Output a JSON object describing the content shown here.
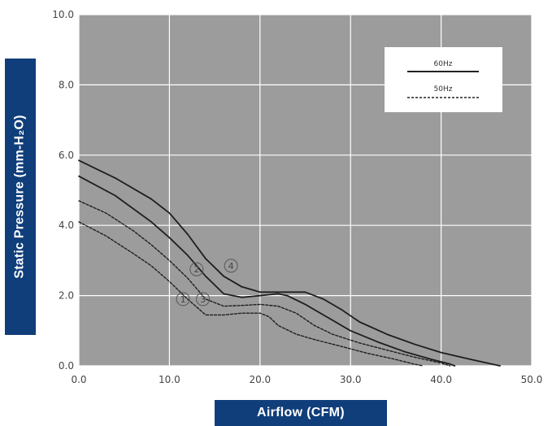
{
  "chart_data": {
    "type": "line",
    "xlabel": "Airflow (CFM)",
    "ylabel": "Static Pressure (mm-H₂O)",
    "xlim": [
      0,
      50
    ],
    "ylim": [
      0,
      10
    ],
    "x_ticks": [
      "0.0",
      "10.0",
      "20.0",
      "30.0",
      "40.0",
      "50.0"
    ],
    "y_ticks": [
      "0.0",
      "2.0",
      "4.0",
      "6.0",
      "8.0",
      "10.0"
    ],
    "grid": true,
    "legend": {
      "position": "top-right",
      "entries": [
        {
          "label": "60Hz",
          "style": "solid"
        },
        {
          "label": "50Hz",
          "style": "dashed"
        }
      ]
    },
    "curve_markers": [
      {
        "label": "1",
        "x": 11.5,
        "y": 1.9
      },
      {
        "label": "2",
        "x": 13.0,
        "y": 2.75
      },
      {
        "label": "3",
        "x": 13.7,
        "y": 1.9
      },
      {
        "label": "4",
        "x": 16.8,
        "y": 2.85
      }
    ],
    "series": [
      {
        "marker": "4",
        "style": "solid",
        "points": [
          [
            0,
            5.85
          ],
          [
            4,
            5.35
          ],
          [
            8,
            4.75
          ],
          [
            10,
            4.35
          ],
          [
            12,
            3.75
          ],
          [
            14,
            3.05
          ],
          [
            16,
            2.55
          ],
          [
            18,
            2.25
          ],
          [
            20,
            2.1
          ],
          [
            22,
            2.1
          ],
          [
            24,
            2.1
          ],
          [
            25,
            2.1
          ],
          [
            27,
            1.9
          ],
          [
            29,
            1.6
          ],
          [
            31,
            1.25
          ],
          [
            34,
            0.9
          ],
          [
            37,
            0.62
          ],
          [
            40,
            0.38
          ],
          [
            43,
            0.2
          ],
          [
            46.5,
            0.0
          ]
        ]
      },
      {
        "marker": "2",
        "style": "solid",
        "points": [
          [
            0,
            5.4
          ],
          [
            4,
            4.85
          ],
          [
            8,
            4.1
          ],
          [
            10,
            3.65
          ],
          [
            12,
            3.15
          ],
          [
            14,
            2.55
          ],
          [
            16,
            2.05
          ],
          [
            18,
            1.95
          ],
          [
            20,
            2.0
          ],
          [
            22,
            2.05
          ],
          [
            23,
            2.0
          ],
          [
            25,
            1.75
          ],
          [
            27,
            1.45
          ],
          [
            30,
            1.0
          ],
          [
            33,
            0.68
          ],
          [
            36,
            0.4
          ],
          [
            39,
            0.18
          ],
          [
            41,
            0.05
          ],
          [
            41.5,
            0.0
          ]
        ]
      },
      {
        "marker": "3",
        "style": "dashed",
        "points": [
          [
            0,
            4.7
          ],
          [
            3,
            4.35
          ],
          [
            6,
            3.85
          ],
          [
            8,
            3.45
          ],
          [
            10,
            3.0
          ],
          [
            12,
            2.5
          ],
          [
            14,
            1.9
          ],
          [
            16,
            1.7
          ],
          [
            18,
            1.72
          ],
          [
            20,
            1.75
          ],
          [
            22,
            1.7
          ],
          [
            24,
            1.5
          ],
          [
            26,
            1.15
          ],
          [
            28,
            0.9
          ],
          [
            31,
            0.65
          ],
          [
            34,
            0.45
          ],
          [
            37,
            0.25
          ],
          [
            40,
            0.08
          ],
          [
            41,
            0.0
          ]
        ]
      },
      {
        "marker": "1",
        "style": "dashed",
        "points": [
          [
            0,
            4.1
          ],
          [
            3,
            3.7
          ],
          [
            6,
            3.2
          ],
          [
            8,
            2.85
          ],
          [
            10,
            2.4
          ],
          [
            12,
            1.9
          ],
          [
            14,
            1.45
          ],
          [
            16,
            1.45
          ],
          [
            18,
            1.5
          ],
          [
            20,
            1.5
          ],
          [
            21,
            1.4
          ],
          [
            22,
            1.15
          ],
          [
            24,
            0.9
          ],
          [
            26,
            0.75
          ],
          [
            29,
            0.55
          ],
          [
            32,
            0.35
          ],
          [
            35,
            0.18
          ],
          [
            37,
            0.05
          ],
          [
            38,
            0.0
          ]
        ]
      }
    ]
  }
}
